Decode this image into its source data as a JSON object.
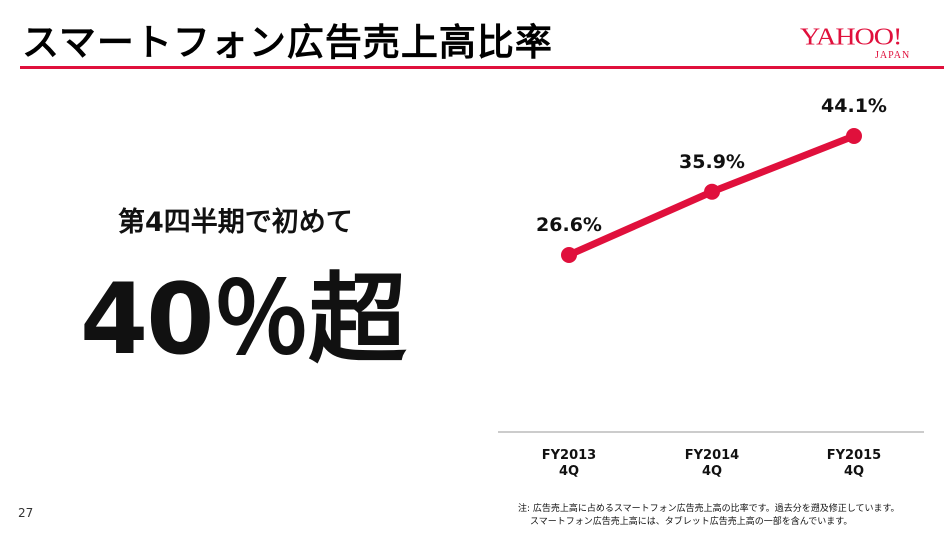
{
  "header": {
    "title": "スマートフォン広告売上高比率",
    "logo_main": "YAHOO!",
    "logo_sub": "JAPAN"
  },
  "callout": {
    "subtitle": "第4四半期で初めて",
    "headline": "40％超"
  },
  "chart_data": {
    "type": "line",
    "categories": [
      [
        "FY2013",
        "4Q"
      ],
      [
        "FY2014",
        "4Q"
      ],
      [
        "FY2015",
        "4Q"
      ]
    ],
    "series": [
      {
        "values": [
          26.6,
          35.9,
          44.1
        ],
        "labels": [
          "26.6%",
          "35.9%",
          "44.1%"
        ],
        "color": "#e0103c"
      }
    ],
    "title": "",
    "xlabel": "",
    "ylabel": "",
    "grid": false
  },
  "footer": {
    "page_number": "27",
    "note_line1": "注: 広告売上高に占めるスマートフォン広告売上高の比率です。過去分を遡及修正しています。",
    "note_line2": "スマートフォン広告売上高には、タブレット広告売上高の一部を含んでいます。"
  }
}
